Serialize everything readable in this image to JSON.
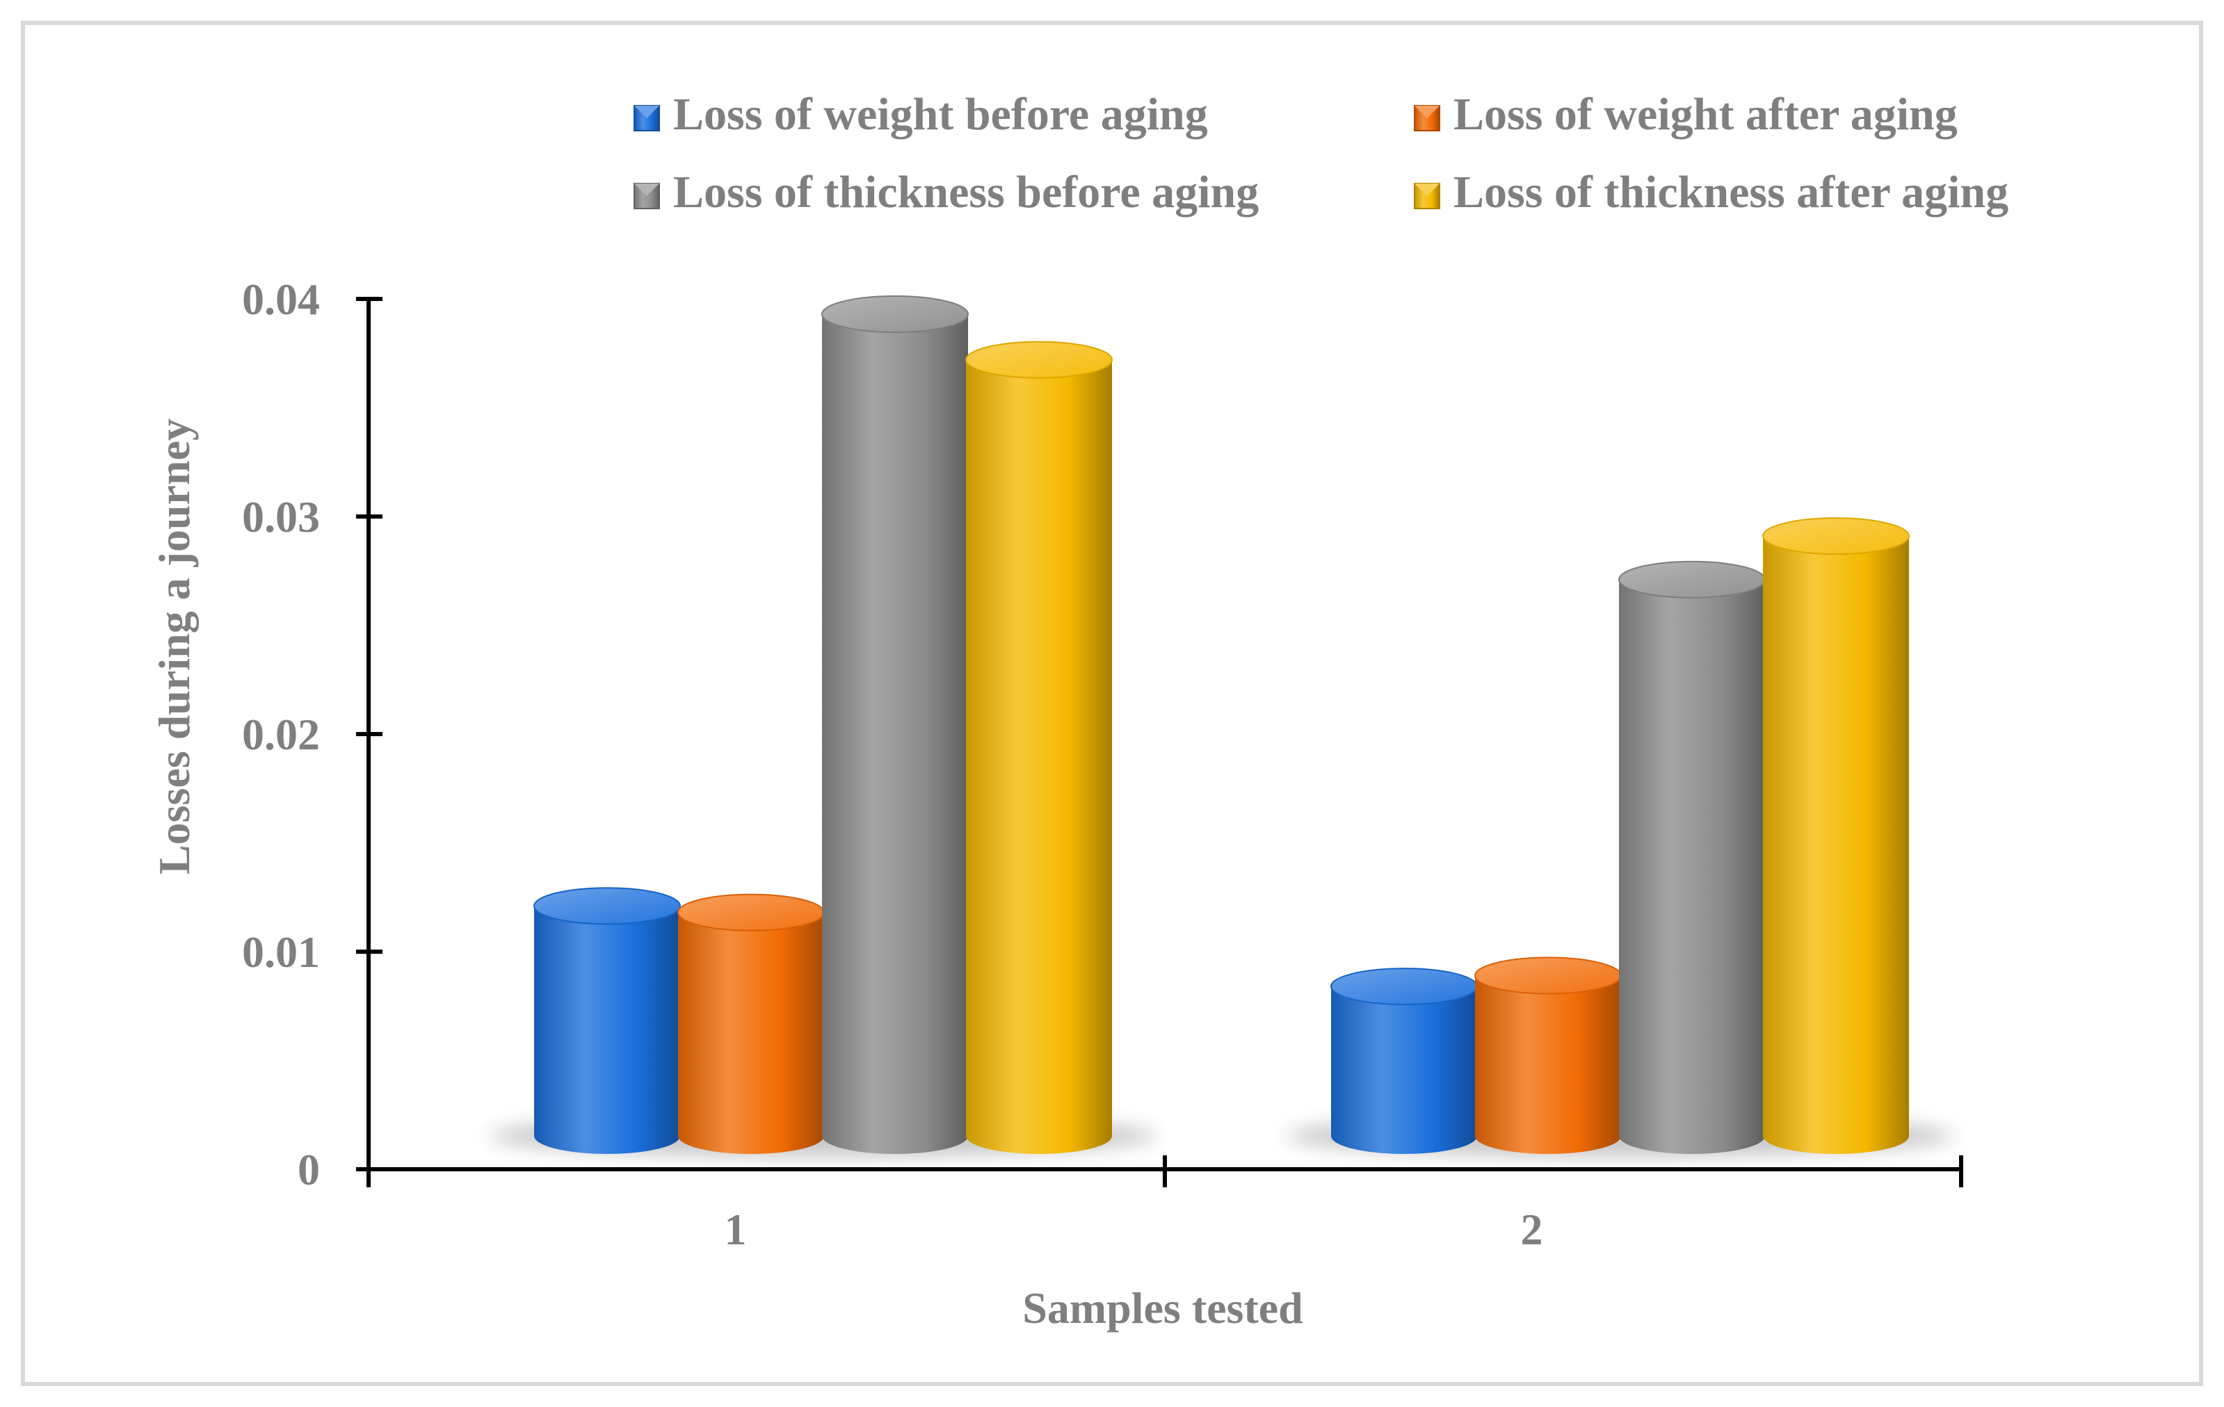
{
  "chart_data": {
    "type": "bar",
    "style": "3d-cylinder",
    "categories": [
      "1",
      "2"
    ],
    "series": [
      {
        "name": "Loss of weight before aging",
        "color": "#1a6fdc",
        "values": [
          0.0121,
          0.0084
        ]
      },
      {
        "name": "Loss of weight after aging",
        "color": "#f26b05",
        "values": [
          0.0118,
          0.0089
        ]
      },
      {
        "name": "Loss of thickness before aging",
        "color": "#8c8c8c",
        "values": [
          0.0393,
          0.0271
        ]
      },
      {
        "name": "Loss of thickness after aging",
        "color": "#f5b800",
        "values": [
          0.0372,
          0.0291
        ]
      }
    ],
    "xlabel": "Samples tested",
    "ylabel": "Losses during a journey",
    "ylim": [
      0,
      0.04
    ],
    "yticks": [
      "0",
      "0.01",
      "0.02",
      "0.03",
      "0.04"
    ],
    "legend_position": "top",
    "grid": false
  }
}
